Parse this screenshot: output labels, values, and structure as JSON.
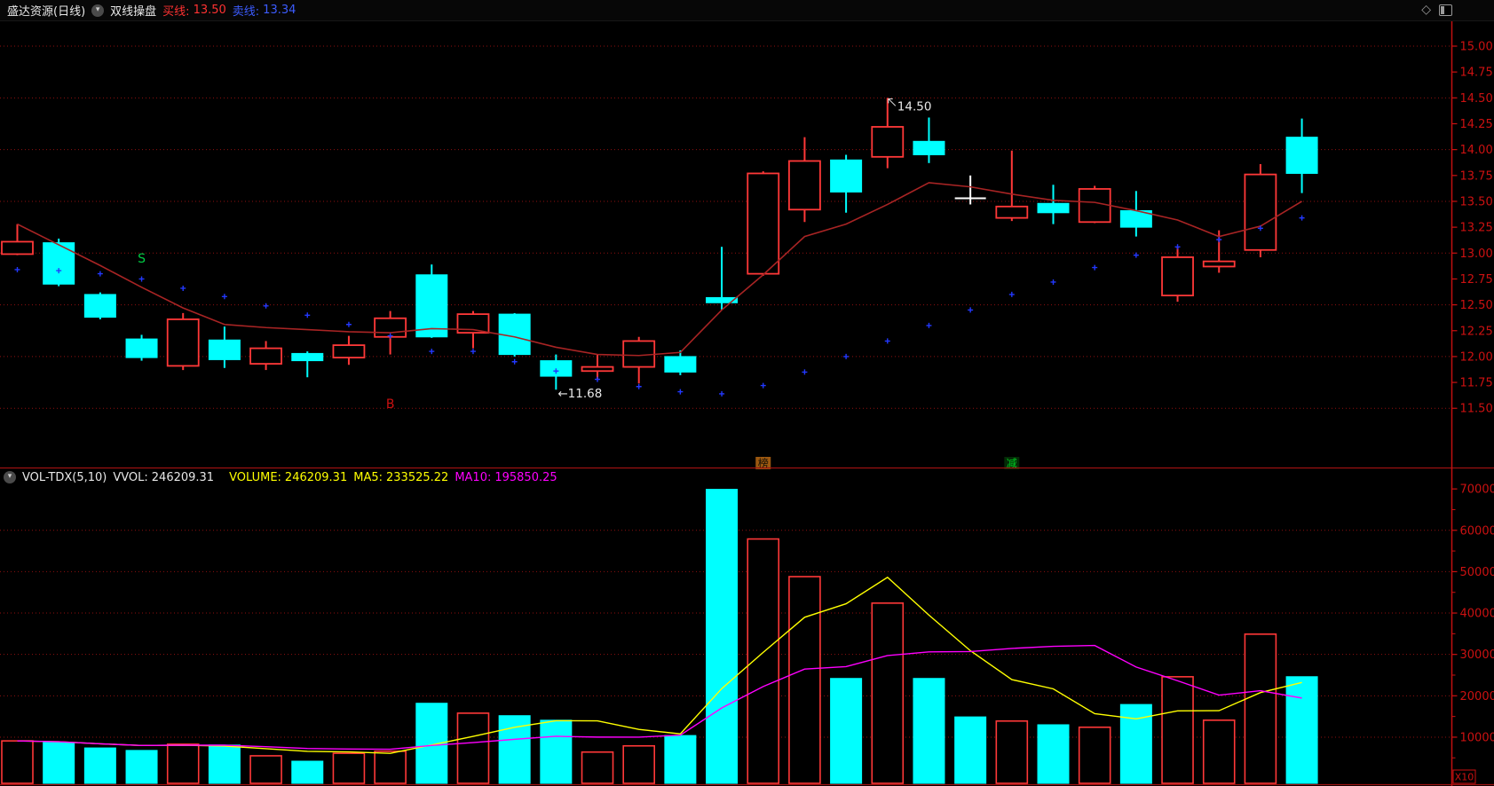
{
  "header": {
    "title": "盛达资源(日线)",
    "indicator_name": "双线操盘",
    "buy_label": "买线:",
    "buy_value": "13.50",
    "sell_label": "卖线:",
    "sell_value": "13.34"
  },
  "volume_header": {
    "indicator": "VOL-TDX(5,10)",
    "vvol_label": "VVOL:",
    "vvol_value": "246209.31",
    "volume_label": "VOLUME:",
    "volume_value": "246209.31",
    "ma5_label": "MA5:",
    "ma5_value": "233525.22",
    "ma10_label": "MA10:",
    "ma10_value": "195850.25"
  },
  "price_axis": {
    "labels": [
      "15.00",
      "14.75",
      "14.50",
      "14.25",
      "14.00",
      "13.75",
      "13.50",
      "13.25",
      "13.00",
      "12.75",
      "12.50",
      "12.25",
      "12.00",
      "11.75",
      "11.50"
    ],
    "color": "#cc1111"
  },
  "volume_axis": {
    "labels": [
      "70000",
      "60000",
      "50000",
      "40000",
      "30000",
      "20000",
      "10000"
    ],
    "multiplier": "X10"
  },
  "annotations": {
    "high_label": "14.50",
    "low_label": "←11.68",
    "sell_marker": "S",
    "buy_marker": "B",
    "tag_bang": "榜",
    "tag_jian": "减"
  },
  "colors": {
    "up": "#ff3838",
    "down": "#00ffff",
    "doji": "#ffffff",
    "buy_line": "#a82424",
    "sell_line": "#2238ff",
    "vol_ma5": "#ffff00",
    "vol_ma10": "#ff00ff",
    "axis": "#cc1111",
    "grid": "#8f1010",
    "annotation_text": "#e8e8e8",
    "s_marker": "#00cc44",
    "b_marker": "#cc1111",
    "tag_bang_bg": "#9c5810",
    "tag_bang_text": "#141006",
    "tag_jian_bg": "#042b06",
    "tag_jian_text": "#00cc22"
  },
  "chart_data": {
    "type": "candlestick+volume",
    "title": "盛达资源(日线) 双线操盘",
    "price_range": [
      11.5,
      15.0
    ],
    "volume_range": [
      0,
      75000
    ],
    "volume_unit": "X10",
    "grid": "dotted-red",
    "legend_position": "top",
    "candles": [
      {
        "o": 12.99,
        "h": 13.28,
        "l": 12.98,
        "c": 13.11,
        "color": "up",
        "volume": 9100,
        "vol_color": "up"
      },
      {
        "o": 13.1,
        "h": 13.14,
        "l": 12.68,
        "c": 12.7,
        "color": "down",
        "volume": 8700,
        "vol_color": "down"
      },
      {
        "o": 12.6,
        "h": 12.62,
        "l": 12.36,
        "c": 12.38,
        "color": "down",
        "volume": 7400,
        "vol_color": "down"
      },
      {
        "o": 12.17,
        "h": 12.21,
        "l": 11.96,
        "c": 11.99,
        "color": "down",
        "volume": 6800,
        "vol_color": "down"
      },
      {
        "o": 11.91,
        "h": 12.42,
        "l": 11.87,
        "c": 12.36,
        "color": "up",
        "volume": 8300,
        "vol_color": "up"
      },
      {
        "o": 12.16,
        "h": 12.29,
        "l": 11.89,
        "c": 11.97,
        "color": "down",
        "volume": 8100,
        "vol_color": "down"
      },
      {
        "o": 11.93,
        "h": 12.15,
        "l": 11.87,
        "c": 12.08,
        "color": "up",
        "volume": 5500,
        "vol_color": "up"
      },
      {
        "o": 12.03,
        "h": 12.05,
        "l": 11.8,
        "c": 11.96,
        "color": "down",
        "volume": 4200,
        "vol_color": "down"
      },
      {
        "o": 11.99,
        "h": 12.2,
        "l": 11.92,
        "c": 12.11,
        "color": "up",
        "volume": 6100,
        "vol_color": "up"
      },
      {
        "o": 12.19,
        "h": 12.44,
        "l": 12.02,
        "c": 12.37,
        "color": "up",
        "volume": 6600,
        "vol_color": "up"
      },
      {
        "o": 12.79,
        "h": 12.89,
        "l": 12.18,
        "c": 12.19,
        "color": "down",
        "volume": 18200,
        "vol_color": "down"
      },
      {
        "o": 12.23,
        "h": 12.44,
        "l": 12.08,
        "c": 12.41,
        "color": "up",
        "volume": 15800,
        "vol_color": "up"
      },
      {
        "o": 12.41,
        "h": 12.42,
        "l": 12.0,
        "c": 12.02,
        "color": "down",
        "volume": 15200,
        "vol_color": "down"
      },
      {
        "o": 11.96,
        "h": 12.02,
        "l": 11.68,
        "c": 11.81,
        "color": "down",
        "volume": 14100,
        "vol_color": "down"
      },
      {
        "o": 11.86,
        "h": 12.02,
        "l": 11.78,
        "c": 11.9,
        "color": "up",
        "volume": 6400,
        "vol_color": "up"
      },
      {
        "o": 11.9,
        "h": 12.19,
        "l": 11.74,
        "c": 12.15,
        "color": "up",
        "volume": 7900,
        "vol_color": "up"
      },
      {
        "o": 12.0,
        "h": 12.06,
        "l": 11.82,
        "c": 11.85,
        "color": "down",
        "volume": 10400,
        "vol_color": "down"
      },
      {
        "o": 12.57,
        "h": 13.06,
        "l": 12.45,
        "c": 12.52,
        "color": "down",
        "volume": 69900,
        "vol_color": "down"
      },
      {
        "o": 12.8,
        "h": 13.79,
        "l": 12.78,
        "c": 13.77,
        "color": "up",
        "volume": 57900,
        "vol_color": "up"
      },
      {
        "o": 13.42,
        "h": 14.12,
        "l": 13.3,
        "c": 13.89,
        "color": "up",
        "volume": 48800,
        "vol_color": "up"
      },
      {
        "o": 13.9,
        "h": 13.95,
        "l": 13.39,
        "c": 13.59,
        "color": "down",
        "volume": 24200,
        "vol_color": "down"
      },
      {
        "o": 13.93,
        "h": 14.5,
        "l": 13.82,
        "c": 14.22,
        "color": "up",
        "volume": 42400,
        "vol_color": "up"
      },
      {
        "o": 14.08,
        "h": 14.31,
        "l": 13.87,
        "c": 13.95,
        "color": "down",
        "volume": 24200,
        "vol_color": "down"
      },
      {
        "o": 13.53,
        "h": 13.75,
        "l": 13.47,
        "c": 13.53,
        "color": "doji",
        "volume": 14900,
        "vol_color": "down"
      },
      {
        "o": 13.34,
        "h": 13.99,
        "l": 13.31,
        "c": 13.45,
        "color": "up",
        "volume": 13900,
        "vol_color": "up"
      },
      {
        "o": 13.48,
        "h": 13.66,
        "l": 13.28,
        "c": 13.39,
        "color": "down",
        "volume": 13000,
        "vol_color": "down"
      },
      {
        "o": 13.3,
        "h": 13.65,
        "l": 13.29,
        "c": 13.62,
        "color": "up",
        "volume": 12400,
        "vol_color": "up"
      },
      {
        "o": 13.41,
        "h": 13.6,
        "l": 13.16,
        "c": 13.25,
        "color": "down",
        "volume": 17900,
        "vol_color": "down"
      },
      {
        "o": 12.59,
        "h": 13.06,
        "l": 12.53,
        "c": 12.96,
        "color": "up",
        "volume": 24600,
        "vol_color": "up"
      },
      {
        "o": 12.87,
        "h": 13.22,
        "l": 12.81,
        "c": 12.92,
        "color": "up",
        "volume": 14100,
        "vol_color": "up"
      },
      {
        "o": 13.03,
        "h": 13.86,
        "l": 12.96,
        "c": 13.76,
        "color": "up",
        "volume": 34900,
        "vol_color": "up"
      },
      {
        "o": 14.12,
        "h": 14.3,
        "l": 13.58,
        "c": 13.77,
        "color": "down",
        "volume": 24621,
        "vol_color": "down"
      }
    ],
    "buy_line": [
      13.28,
      13.08,
      12.88,
      12.67,
      12.47,
      12.31,
      12.28,
      12.26,
      12.24,
      12.23,
      12.27,
      12.26,
      12.19,
      12.09,
      12.02,
      12.01,
      12.04,
      12.45,
      12.79,
      13.16,
      13.28,
      13.47,
      13.68,
      13.64,
      13.57,
      13.51,
      13.49,
      13.41,
      13.32,
      13.16,
      13.26,
      13.5
    ],
    "sell_line": [
      12.84,
      12.83,
      12.8,
      12.75,
      12.66,
      12.58,
      12.49,
      12.4,
      12.31,
      12.2,
      12.05,
      12.05,
      11.95,
      11.86,
      11.78,
      11.71,
      11.66,
      11.64,
      11.72,
      11.85,
      12.0,
      12.15,
      12.3,
      12.45,
      12.6,
      12.72,
      12.86,
      12.98,
      13.06,
      13.13,
      13.24,
      13.34
    ],
    "vol_ma5_last": 23352.5,
    "vol_ma10_last": 19585.0,
    "markers": {
      "high_candle": 22,
      "low_candle": 14,
      "s_candle": 4,
      "b_candle": 10,
      "bang_candle": 19,
      "jian_candle": 25
    }
  }
}
